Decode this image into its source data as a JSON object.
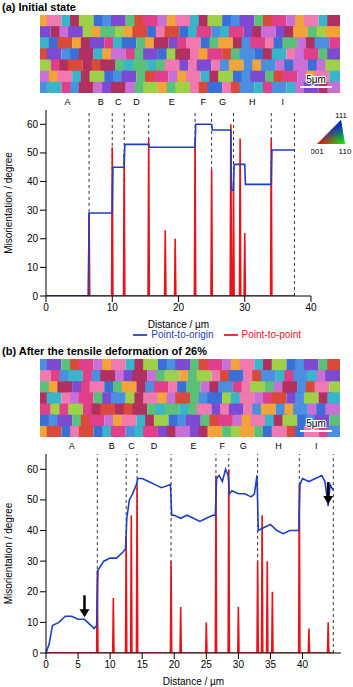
{
  "chart_data": [
    {
      "type": "line",
      "title": "(a) Initial state",
      "x_label": "Distance / µm",
      "y_label": "Misorientation / degree",
      "xlim": [
        0,
        40
      ],
      "xticks": [
        0,
        10,
        20,
        30,
        40
      ],
      "ylim": [
        0,
        65
      ],
      "yticks": [
        0,
        10,
        20,
        30,
        40,
        50,
        60
      ],
      "legend": "lower right",
      "scale_bar": "5μm",
      "color_key": [
        "111",
        "001",
        "110"
      ],
      "regions": [
        "A",
        "B",
        "C",
        "D",
        "E",
        "F",
        "G",
        "H",
        "I"
      ],
      "boundaries": [
        6.5,
        10,
        11.8,
        15.5,
        22.5,
        25,
        28.3,
        34,
        37.5
      ],
      "series": [
        {
          "name": "Point-to-point",
          "color": "#e8141b",
          "x": [
            0,
            6.4,
            6.5,
            6.6,
            9.9,
            10,
            10.1,
            11.7,
            11.8,
            11.9,
            15.4,
            15.5,
            15.6,
            17.9,
            18,
            18.1,
            19.4,
            19.5,
            19.6,
            22.4,
            22.5,
            22.6,
            24.9,
            25,
            25.1,
            27.8,
            27.9,
            28,
            28.2,
            28.3,
            28.4,
            29.2,
            29.3,
            29.4,
            29.9,
            30,
            30.1,
            33.9,
            34,
            34.1,
            37.5
          ],
          "values": [
            0,
            0,
            29,
            0,
            0,
            52,
            0,
            0,
            50,
            0,
            0,
            55,
            0,
            0,
            23,
            0,
            0,
            20,
            0,
            0,
            55,
            0,
            0,
            44,
            0,
            0,
            60,
            0,
            0,
            40,
            0,
            0,
            55,
            0,
            0,
            22,
            0,
            0,
            55,
            0,
            0
          ]
        },
        {
          "name": "Point-to-origin",
          "color": "#1f3fbf",
          "x": [
            0,
            6.4,
            6.5,
            10,
            10.1,
            11.8,
            11.9,
            15.5,
            15.6,
            22.5,
            22.6,
            25,
            25.1,
            27.9,
            28,
            28.3,
            28.4,
            30,
            30.1,
            34,
            34.1,
            37.5
          ],
          "values": [
            0,
            0,
            29,
            29,
            45,
            45,
            53,
            53,
            52,
            52,
            60,
            60,
            58,
            58,
            37,
            37,
            46,
            46,
            39,
            39,
            51,
            51
          ]
        }
      ]
    },
    {
      "type": "line",
      "title": "(b) After the tensile deformation of 26%",
      "x_label": "Distance / µm",
      "y_label": "Misorientation / degree",
      "xlim": [
        0,
        46
      ],
      "xticks": [
        0,
        5,
        10,
        15,
        20,
        25,
        30,
        35,
        40
      ],
      "ylim": [
        0,
        65
      ],
      "yticks": [
        0,
        10,
        20,
        30,
        40,
        50,
        60
      ],
      "scale_bar": "5μm",
      "regions": [
        "A",
        "B",
        "C",
        "D",
        "E",
        "F",
        "G",
        "H",
        "I"
      ],
      "boundaries": [
        8,
        12.5,
        14.2,
        19.5,
        26.5,
        28.5,
        33,
        39.5,
        44.8
      ],
      "arrows": [
        {
          "x": 6,
          "y": 11
        },
        {
          "x": 44,
          "y": 48
        }
      ],
      "series": [
        {
          "color": "#e8141b",
          "x": [
            0,
            7.9,
            8,
            8.1,
            10.4,
            10.5,
            10.6,
            12.4,
            12.5,
            12.6,
            13.2,
            13.3,
            13.4,
            14.1,
            14.2,
            14.3,
            19.4,
            19.5,
            19.6,
            20.9,
            21,
            21.1,
            24.9,
            25,
            25.1,
            26.4,
            26.5,
            26.6,
            28.4,
            28.5,
            28.6,
            29.9,
            30,
            30.1,
            32.9,
            33,
            33.1,
            33.6,
            33.7,
            33.8,
            34.4,
            34.5,
            34.6,
            35.2,
            35.3,
            35.4,
            39.4,
            39.5,
            39.6,
            40.9,
            41,
            41.1,
            43.9,
            44,
            44.1,
            44.8
          ],
          "values": [
            0,
            0,
            27,
            0,
            0,
            18,
            0,
            0,
            38,
            0,
            0,
            45,
            0,
            0,
            55,
            0,
            0,
            30,
            0,
            0,
            15,
            0,
            0,
            10,
            0,
            0,
            58,
            0,
            0,
            60,
            0,
            0,
            15,
            0,
            0,
            30,
            0,
            0,
            45,
            0,
            0,
            30,
            0,
            0,
            20,
            0,
            0,
            55,
            0,
            0,
            8,
            0,
            0,
            10,
            0,
            0
          ]
        },
        {
          "color": "#1f3fbf",
          "x": [
            0,
            0.5,
            1,
            2,
            3,
            4,
            5,
            6,
            7,
            7.5,
            7.9,
            8.1,
            9,
            10,
            11,
            12,
            12.4,
            12.6,
            13,
            13.5,
            14.1,
            14.3,
            15,
            16,
            17,
            18,
            19.4,
            19.6,
            20,
            21,
            22,
            23,
            24,
            25,
            26,
            26.4,
            26.6,
            27,
            27.5,
            28,
            28.4,
            28.6,
            29,
            30,
            31,
            32,
            32.5,
            32.9,
            33.1,
            34,
            35,
            36,
            37,
            38,
            39,
            39.4,
            39.6,
            40,
            41,
            42,
            43,
            43.5,
            44,
            44.3,
            44.8
          ],
          "values": [
            0,
            3,
            9,
            10,
            12,
            12,
            11,
            11,
            9,
            8,
            9,
            27,
            30,
            31,
            31,
            33,
            34,
            44,
            50,
            52,
            55,
            57,
            57,
            56,
            55,
            54,
            55,
            45,
            45,
            44,
            45,
            44,
            43,
            44,
            45,
            45,
            57,
            58,
            56,
            60,
            58,
            52,
            53,
            52,
            52,
            51,
            52,
            58,
            40,
            41,
            42,
            40,
            39,
            40,
            40,
            40,
            55,
            57,
            56,
            57,
            58,
            56,
            48,
            55,
            53
          ]
        }
      ]
    }
  ]
}
